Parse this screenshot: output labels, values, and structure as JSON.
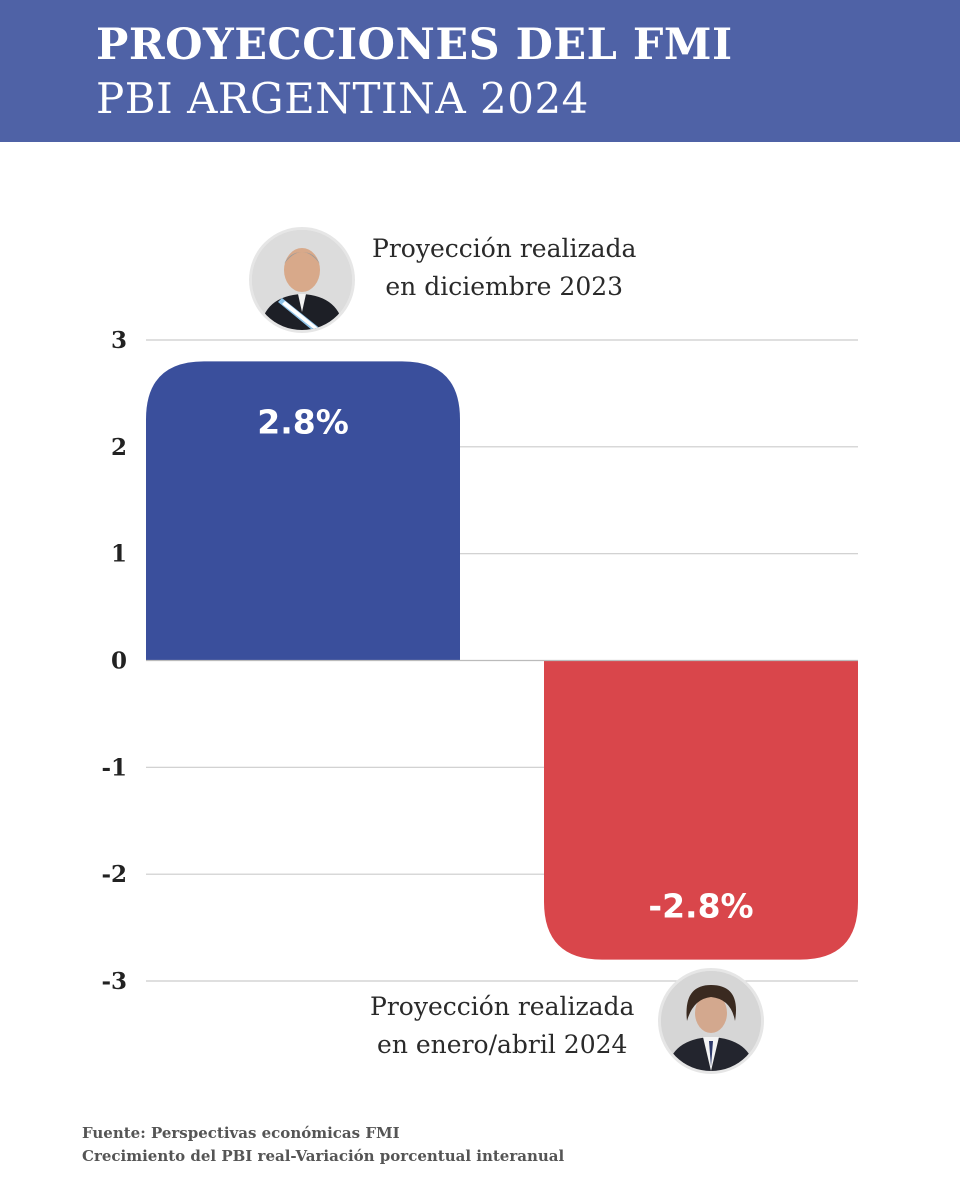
{
  "header": {
    "title_line1": "PROYECCIONES DEL FMI",
    "title_line2": "PBI ARGENTINA 2024"
  },
  "colors": {
    "header_bg": "#4f62a6",
    "bar_positive": "#3a4f9c",
    "bar_negative": "#d9464b",
    "grid": "#cccccc"
  },
  "chart_data": {
    "type": "bar",
    "categories": [
      "Proyección realizada en diciembre 2023",
      "Proyección realizada en enero/abril 2024"
    ],
    "values": [
      2.8,
      -2.8
    ],
    "data_labels": [
      "2.8%",
      "-2.8%"
    ],
    "ylim": [
      -3,
      3
    ],
    "yticks": [
      3,
      2,
      1,
      0,
      -1,
      -2,
      -3
    ],
    "grid": true
  },
  "annotations": {
    "top_line1": "Proyección realizada",
    "top_line2": "en diciembre 2023",
    "bottom_line1": "Proyección realizada",
    "bottom_line2": "en enero/abril 2024"
  },
  "source": {
    "line1": "Fuente: Perspectivas económicas FMI",
    "line2": "Crecimiento del PBI real-Variación porcentual interanual"
  }
}
